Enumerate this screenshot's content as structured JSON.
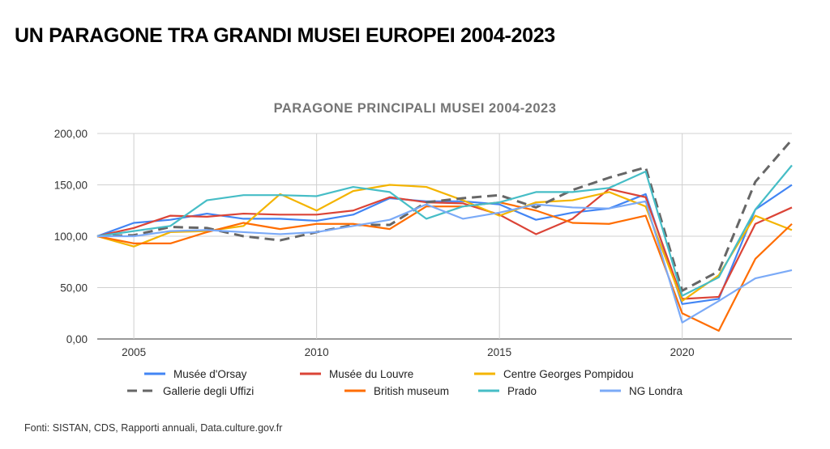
{
  "page_title": "UN PARAGONE TRA GRANDI MUSEI EUROPEI 2004-2023",
  "source": "Fonti: SISTAN, CDS, Rapporti annuali, Data.culture.gov.fr",
  "chart_data": {
    "type": "line",
    "title": "PARAGONE PRINCIPALI MUSEI 2004-2023",
    "xlabel": "",
    "ylabel": "",
    "x": [
      2004,
      2005,
      2006,
      2007,
      2008,
      2009,
      2010,
      2011,
      2012,
      2013,
      2014,
      2015,
      2016,
      2017,
      2018,
      2019,
      2020,
      2021,
      2022,
      2023
    ],
    "xlim": [
      2004,
      2023
    ],
    "ylim": [
      0,
      200
    ],
    "x_ticks": [
      2005,
      2010,
      2015,
      2020
    ],
    "x_tick_labels": [
      "2005",
      "2010",
      "2015",
      "2020"
    ],
    "y_ticks": [
      0,
      50,
      100,
      150,
      200
    ],
    "y_tick_labels": [
      "0,00",
      "50,00",
      "100,00",
      "150,00",
      "200,00"
    ],
    "grid": true,
    "legend_position": "bottom",
    "series": [
      {
        "name": "Musée d'Orsay",
        "color": "#4285f4",
        "dashed": false,
        "values": [
          100,
          113,
          116,
          122,
          117,
          117,
          115,
          121,
          137,
          134,
          134,
          131,
          116,
          123,
          127,
          141,
          34,
          39,
          126,
          150
        ]
      },
      {
        "name": "Musée du Louvre",
        "color": "#db4437",
        "dashed": false,
        "values": [
          100,
          108,
          120,
          119,
          122,
          121,
          121,
          125,
          138,
          133,
          132,
          121,
          102,
          117,
          146,
          138,
          39,
          41,
          112,
          128
        ]
      },
      {
        "name": "Centre Georges Pompidou",
        "color": "#f4b400",
        "dashed": false,
        "values": [
          100,
          90,
          104,
          105,
          110,
          141,
          125,
          144,
          150,
          148,
          135,
          120,
          133,
          135,
          143,
          129,
          37,
          62,
          120,
          106
        ]
      },
      {
        "name": "Gallerie degli Uffizi",
        "color": "#666666",
        "dashed": true,
        "values": [
          100,
          101,
          109,
          108,
          100,
          96,
          104,
          111,
          111,
          133,
          137,
          140,
          128,
          145,
          157,
          167,
          47,
          66,
          153,
          194
        ]
      },
      {
        "name": "British museum",
        "color": "#ff6d01",
        "dashed": false,
        "values": [
          100,
          93,
          93,
          104,
          113,
          107,
          112,
          112,
          107,
          129,
          129,
          133,
          125,
          113,
          112,
          120,
          25,
          8,
          78,
          112
        ]
      },
      {
        "name": "Prado",
        "color": "#46bdc6",
        "dashed": false,
        "values": [
          100,
          105,
          110,
          135,
          140,
          140,
          139,
          148,
          143,
          117,
          129,
          133,
          143,
          143,
          147,
          163,
          42,
          60,
          126,
          169
        ]
      },
      {
        "name": "NG Londra",
        "color": "#7baaf7",
        "dashed": false,
        "values": [
          100,
          100,
          105,
          106,
          104,
          102,
          104,
          110,
          116,
          131,
          117,
          123,
          131,
          128,
          127,
          134,
          16,
          37,
          59,
          67
        ]
      }
    ]
  }
}
